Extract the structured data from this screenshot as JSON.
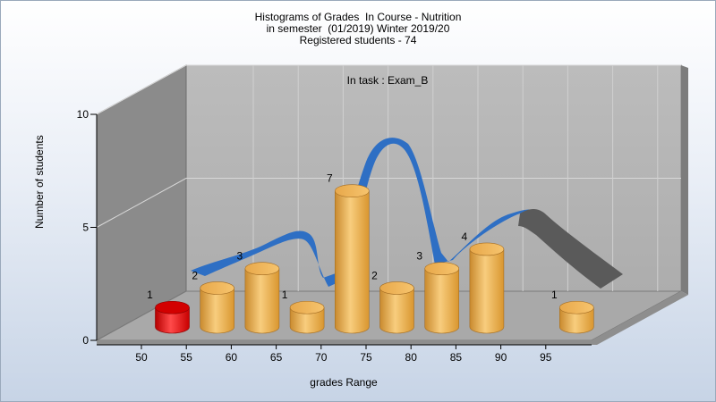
{
  "titles": {
    "line1": "Histograms of Grades  In Course - Nutrition",
    "line2": "in semester  (01/2019) Winter 2019/20",
    "line3": "Registered students - 74"
  },
  "chart_data": {
    "type": "bar",
    "annotation": "In task : Exam_B",
    "xlabel": "grades Range",
    "ylabel": "Number of students",
    "categories": [
      "50",
      "55",
      "60",
      "65",
      "70",
      "75",
      "80",
      "85",
      "90",
      "95"
    ],
    "values": [
      1,
      2,
      3,
      1,
      7,
      2,
      3,
      4,
      0,
      1
    ],
    "x_ticks": [
      "50",
      "55",
      "60",
      "65",
      "70",
      "75",
      "80",
      "85",
      "90",
      "95"
    ],
    "y_ticks": [
      "0",
      "5",
      "10"
    ],
    "ylim": [
      0,
      10
    ],
    "grid": true,
    "highlight_color": "#e01010",
    "bar_color": "#f0b050",
    "curve_color": "#2e6fc4",
    "curve_tail_color": "#5a5a5a"
  }
}
